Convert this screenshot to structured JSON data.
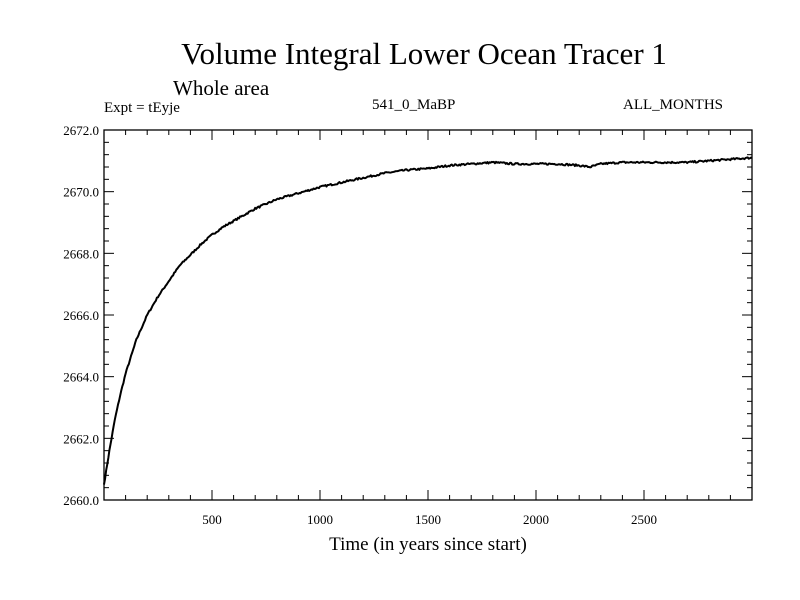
{
  "chart_data": {
    "type": "line",
    "title": "Volume Integral Lower Ocean Tracer 1",
    "subtitle": "Whole area",
    "expt_label": "Expt = tEyje",
    "period_label": "541_0_MaBP",
    "season_label": "ALL_MONTHS",
    "xlabel": "Time (in years since start)",
    "ylabel": "",
    "xlim": [
      0,
      3000
    ],
    "ylim": [
      2660.0,
      2672.0
    ],
    "xticks": [
      500,
      1000,
      1500,
      2000,
      2500
    ],
    "xtick_labels": [
      "500",
      "1000",
      "1500",
      "2000",
      "2500"
    ],
    "yticks": [
      2660.0,
      2662.0,
      2664.0,
      2666.0,
      2668.0,
      2670.0,
      2672.0
    ],
    "ytick_labels": [
      "2660.0",
      "2662.0",
      "2664.0",
      "2666.0",
      "2668.0",
      "2670.0",
      "2672.0"
    ],
    "grid": false,
    "series": [
      {
        "name": "Volume Integral Lower Ocean Tracer 1",
        "color": "#000000",
        "x": [
          0,
          25,
          50,
          75,
          100,
          150,
          200,
          250,
          300,
          350,
          400,
          450,
          500,
          550,
          600,
          650,
          700,
          750,
          800,
          900,
          1000,
          1100,
          1200,
          1300,
          1400,
          1500,
          1600,
          1700,
          1800,
          1900,
          2000,
          2100,
          2200,
          2250,
          2300,
          2400,
          2500,
          2600,
          2700,
          2800,
          2900,
          3000
        ],
        "y": [
          2660.5,
          2661.6,
          2662.6,
          2663.4,
          2664.1,
          2665.2,
          2666.0,
          2666.6,
          2667.1,
          2667.6,
          2667.95,
          2668.3,
          2668.6,
          2668.85,
          2669.05,
          2669.25,
          2669.45,
          2669.6,
          2669.75,
          2669.95,
          2670.15,
          2670.3,
          2670.45,
          2670.6,
          2670.7,
          2670.75,
          2670.85,
          2670.9,
          2670.95,
          2670.9,
          2670.9,
          2670.9,
          2670.85,
          2670.8,
          2670.9,
          2670.95,
          2670.95,
          2670.95,
          2670.95,
          2671.0,
          2671.05,
          2671.1
        ]
      }
    ]
  }
}
